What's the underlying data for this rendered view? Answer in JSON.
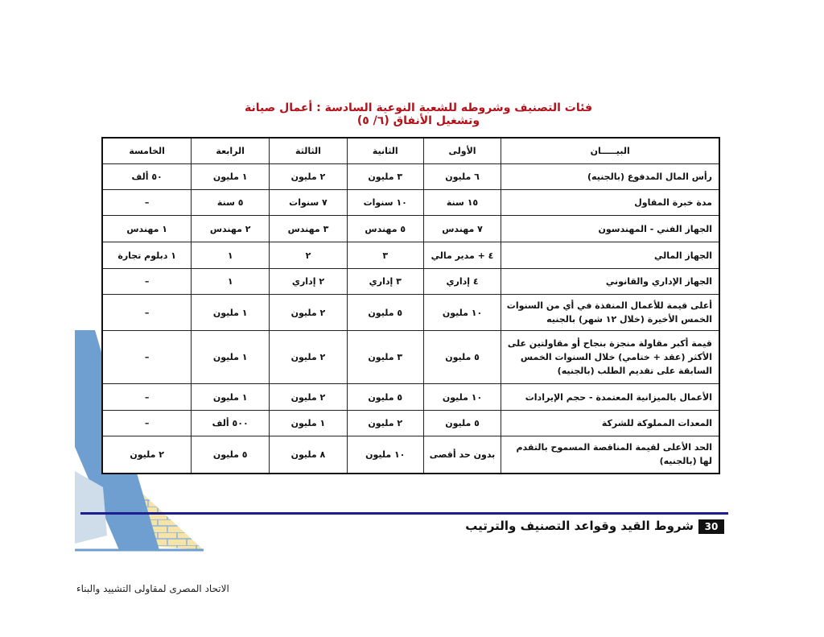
{
  "title": "فئات التصنيف وشروطه للشعبة النوعية السادسة : أعمال صيانة وتشغيل الأنفاق (٦/ ٥)",
  "table": {
    "headers": [
      "البيـــــان",
      "الأولى",
      "الثانية",
      "الثالثة",
      "الرابعة",
      "الخامسة"
    ],
    "rows": [
      [
        "رأس المال المدفوع (بالجنيه)",
        "٦ مليون",
        "٣ مليون",
        "٢ مليون",
        "١ مليون",
        "٥٠ ألف"
      ],
      [
        "مدة خبرة المقاول",
        "١٥ سنة",
        "١٠ سنوات",
        "٧ سنوات",
        "٥ سنة",
        "–"
      ],
      [
        "الجهاز الفني - المهندسون",
        "٧ مهندس",
        "٥ مهندس",
        "٣ مهندس",
        "٢ مهندس",
        "١ مهندس"
      ],
      [
        "الجهاز المالي",
        "٤ + مدير مالي",
        "٣",
        "٢",
        "١",
        "١ دبلوم تجارة"
      ],
      [
        "الجهاز الإداري والقانوني",
        "٤ إداري",
        "٣ إداري",
        "٢ إداري",
        "١",
        "–"
      ],
      [
        "أعلى قيمة للأعمال المنفذة في أي من السنوات الخمس الأخيرة (خلال ١٢ شهر) بالجنيه",
        "١٠ مليون",
        "٥ مليون",
        "٢ مليون",
        "١ مليون",
        "–"
      ],
      [
        "قيمة أكبر مقاولة منجزة بنجاح أو مقاولتين على الأكثر (عقد + ختامي) خلال السنوات الخمس السابقة على تقديم الطلب (بالجنيه)",
        "٥ مليون",
        "٣ مليون",
        "٢ مليون",
        "١ مليون",
        "–"
      ],
      [
        "الأعمال بالميزانية المعتمدة - حجم الإيرادات",
        "١٠ مليون",
        "٥ مليون",
        "٢ مليون",
        "١ مليون",
        "–"
      ],
      [
        "المعدات المملوكة للشركة",
        "٥ مليون",
        "٢ مليون",
        "١ مليون",
        "٥٠٠ ألف",
        "–"
      ],
      [
        "الحد الأعلى لقيمة المناقصة المسموح بالتقدم لها (بالجنيه)",
        "بدون حد أقصى",
        "١٠ مليون",
        "٨ مليون",
        "٥ مليون",
        "٢ مليون"
      ]
    ]
  },
  "footer": {
    "page_number": "30",
    "section_title": "شروط القيد وقواعد التصنيف والترتيب",
    "organization": "الاتحاد المصرى لمقاولى التشييد والبناء"
  },
  "colors": {
    "title": "#b3121a",
    "rule": "#1d1d8f",
    "logo_blue": "#6f9fd0",
    "logo_brick": "#f6e3a8"
  }
}
